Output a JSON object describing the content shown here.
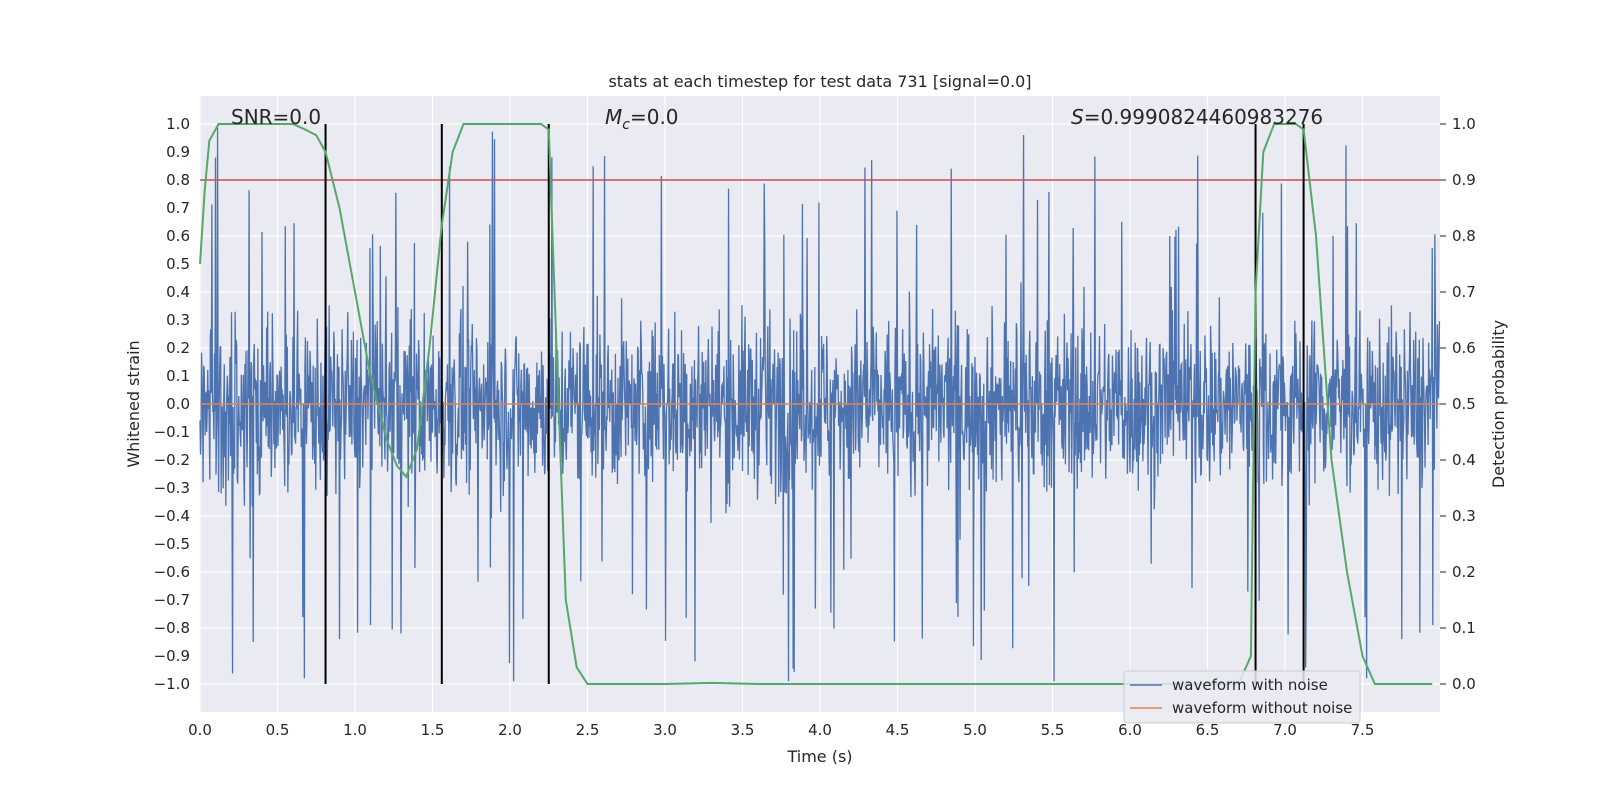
{
  "chart_data": {
    "type": "line",
    "title": "stats at each timestep for test data 731 [signal=0.0]",
    "xlabel": "Time (s)",
    "ylabel": "Whitened strain",
    "y2label": "Detection probability",
    "xlim": [
      0.0,
      8.0
    ],
    "ylim": [
      -1.1,
      1.1
    ],
    "y2lim": [
      -0.05,
      1.05
    ],
    "xticks": [
      "0.0",
      "0.5",
      "1.0",
      "1.5",
      "2.0",
      "2.5",
      "3.0",
      "3.5",
      "4.0",
      "4.5",
      "5.0",
      "5.5",
      "6.0",
      "6.5",
      "7.0",
      "7.5"
    ],
    "yticks": [
      "1.0",
      "0.9",
      "0.8",
      "0.7",
      "0.6",
      "0.5",
      "0.4",
      "0.3",
      "0.2",
      "0.1",
      "0.0",
      "-0.1",
      "-0.2",
      "-0.3",
      "-0.4",
      "-0.5",
      "-0.6",
      "-0.7",
      "-0.8",
      "-0.9",
      "-1.0"
    ],
    "y2ticks": [
      "1.0",
      "0.9",
      "0.8",
      "0.7",
      "0.6",
      "0.5",
      "0.4",
      "0.3",
      "0.2",
      "0.1",
      "0.0"
    ],
    "annotations": {
      "snr": "SNR=0.0",
      "mc_symbol": "M",
      "mc_sub": "c",
      "mc_value": "=0.0",
      "s_symbol": "S",
      "s_value": "=0.9990824460983276"
    },
    "threshold": {
      "y": 0.8,
      "color": "#c44e52"
    },
    "zero_line": {
      "y": 0.0,
      "color": "#dd8452"
    },
    "detection_boundaries_s": [
      0.81,
      1.56,
      2.25,
      6.81,
      7.12
    ],
    "legend": {
      "position": "lower-right",
      "entries": [
        {
          "label": "waveform with noise",
          "color": "#4c72b0"
        },
        {
          "label": "waveform without noise",
          "color": "#dd8452"
        }
      ]
    },
    "series": [
      {
        "name": "waveform with noise",
        "axis": "left",
        "color": "#4c72b0",
        "description": "whitened noisy strain, roughly +/-0.4 with spikes to +/-1.0"
      },
      {
        "name": "waveform without noise",
        "axis": "left",
        "color": "#dd8452",
        "values_const": 0.0
      },
      {
        "name": "detection probability",
        "axis": "right",
        "color": "#55a868",
        "x": [
          0.0,
          0.03,
          0.06,
          0.12,
          0.2,
          0.3,
          0.45,
          0.6,
          0.68,
          0.75,
          0.81,
          0.9,
          1.0,
          1.1,
          1.2,
          1.27,
          1.33,
          1.4,
          1.48,
          1.56,
          1.63,
          1.7,
          1.76,
          1.85,
          2.0,
          2.1,
          2.2,
          2.25,
          2.3,
          2.36,
          2.43,
          2.5,
          2.6,
          3.0,
          3.3,
          3.6,
          4.0,
          5.0,
          6.0,
          6.7,
          6.78,
          6.81,
          6.86,
          6.93,
          7.0,
          7.07,
          7.12,
          7.2,
          7.3,
          7.4,
          7.5,
          7.58,
          7.8,
          7.95
        ],
        "y": [
          0.75,
          0.88,
          0.97,
          1.0,
          1.0,
          1.0,
          1.0,
          1.0,
          0.99,
          0.98,
          0.95,
          0.85,
          0.7,
          0.55,
          0.44,
          0.39,
          0.37,
          0.42,
          0.6,
          0.82,
          0.95,
          1.0,
          1.0,
          1.0,
          1.0,
          1.0,
          1.0,
          0.99,
          0.6,
          0.15,
          0.03,
          0.0,
          0.0,
          0.0,
          0.002,
          0.0,
          0.0,
          0.0,
          0.0,
          0.0,
          0.05,
          0.7,
          0.95,
          1.0,
          1.0,
          1.0,
          0.99,
          0.8,
          0.4,
          0.2,
          0.05,
          0.0,
          0.0,
          0.0
        ]
      }
    ]
  }
}
